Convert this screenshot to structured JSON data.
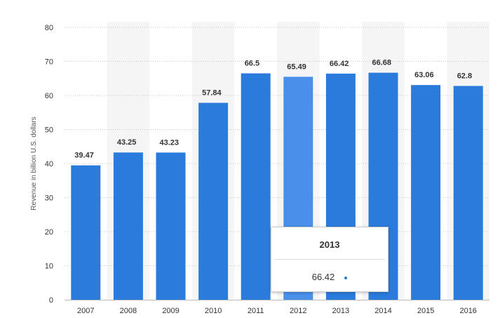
{
  "chart_data": {
    "type": "bar",
    "title": "",
    "xlabel": "",
    "ylabel": "Revenue in billion U.S. dollars",
    "categories": [
      "2007",
      "2008",
      "2009",
      "2010",
      "2011",
      "2012",
      "2013",
      "2014",
      "2015",
      "2016"
    ],
    "values": [
      39.47,
      43.25,
      43.23,
      57.84,
      66.5,
      65.49,
      66.42,
      66.68,
      63.06,
      62.8
    ],
    "value_labels": [
      "39.47",
      "43.25",
      "43.23",
      "57.84",
      "66.5",
      "65.49",
      "66.42",
      "66.68",
      "63.06",
      "62.8"
    ],
    "ylim": [
      0,
      80
    ],
    "yticks": [
      0,
      10,
      20,
      30,
      40,
      50,
      60,
      70,
      80
    ],
    "grid": "dotted-horizontal",
    "highlighted_category": "2012"
  },
  "colors": {
    "bar": "#2b7bdc",
    "bar_highlight": "#4a90ea",
    "band": "#f5f5f5",
    "grid": "#c8c8c8",
    "tooltip_dot": "#2b7bdc"
  },
  "tooltip": {
    "title": "2013",
    "value": "66.42"
  }
}
